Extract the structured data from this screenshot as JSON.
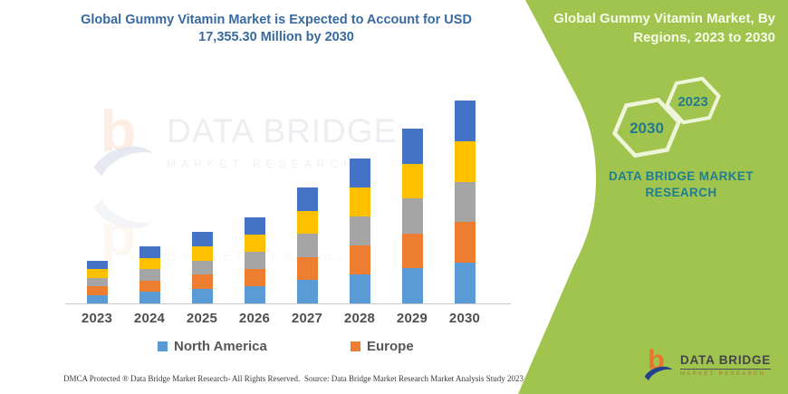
{
  "title": {
    "line1": "Global Gummy Vitamin Market is Expected to Account for USD",
    "line2": "17,355.30 Million by 2030"
  },
  "banner": {
    "color": "#a0c44e",
    "heading_line1": "Global Gummy Vitamin Market, By",
    "heading_line2": "Regions, 2023 to 2030",
    "hexagon_left_label": "2030",
    "hexagon_right_label": "2023",
    "brand_line1": "DATA BRIDGE MARKET",
    "brand_line2": "RESEARCH",
    "text_color": "#1f7e93"
  },
  "watermark": {
    "title": "DATA BRIDGE",
    "subtitle": "MARKET RESEARCH"
  },
  "logo": {
    "name": "DATA BRIDGE",
    "subtitle": "MARKET RESEARCH",
    "orange": "#e8762c",
    "blue": "#24418e"
  },
  "footer": {
    "left": "DMCA Protected ® Data Bridge Market Research-  All Rights Reserved.",
    "right": "Source: Data Bridge Market Research  Market Analysis Study 2023"
  },
  "chart_data": {
    "type": "bar",
    "stacked": true,
    "title": "Global Gummy Vitamin Market is Expected to Account for USD 17,355.30 Million by 2030",
    "unit": "USD Million",
    "values_estimated_from_pixels": true,
    "categories": [
      "2023",
      "2024",
      "2025",
      "2026",
      "2027",
      "2028",
      "2029",
      "2030"
    ],
    "totals": [
      3640,
      4880,
      6120,
      7360,
      9920,
      12400,
      14950,
      17355.3
    ],
    "series": [
      {
        "name": "North America",
        "color": "#5B9BD5",
        "values": [
          728,
          976,
          1224,
          1472,
          1984,
          2480,
          2990,
          3471.1
        ]
      },
      {
        "name": "Europe",
        "color": "#ED7D31",
        "values": [
          728,
          976,
          1224,
          1472,
          1984,
          2480,
          2990,
          3471.1
        ]
      },
      {
        "name": "",
        "color": "#A5A5A5",
        "values": [
          728,
          976,
          1224,
          1472,
          1984,
          2480,
          2990,
          3471.1
        ]
      },
      {
        "name": "",
        "color": "#FFC000",
        "values": [
          728,
          976,
          1224,
          1472,
          1984,
          2480,
          2990,
          3471.1
        ]
      },
      {
        "name": "",
        "color": "#4472C4",
        "values": [
          728,
          976,
          1224,
          1472,
          1984,
          2480,
          2990,
          3471.1
        ]
      }
    ],
    "legend": [
      {
        "label": "North America",
        "color": "#5B9BD5"
      },
      {
        "label": "Europe",
        "color": "#ED7D31"
      }
    ],
    "legend_position": "bottom",
    "grid": false,
    "xlabel": "",
    "ylabel": "",
    "ylim": [
      0,
      17355.3
    ]
  }
}
